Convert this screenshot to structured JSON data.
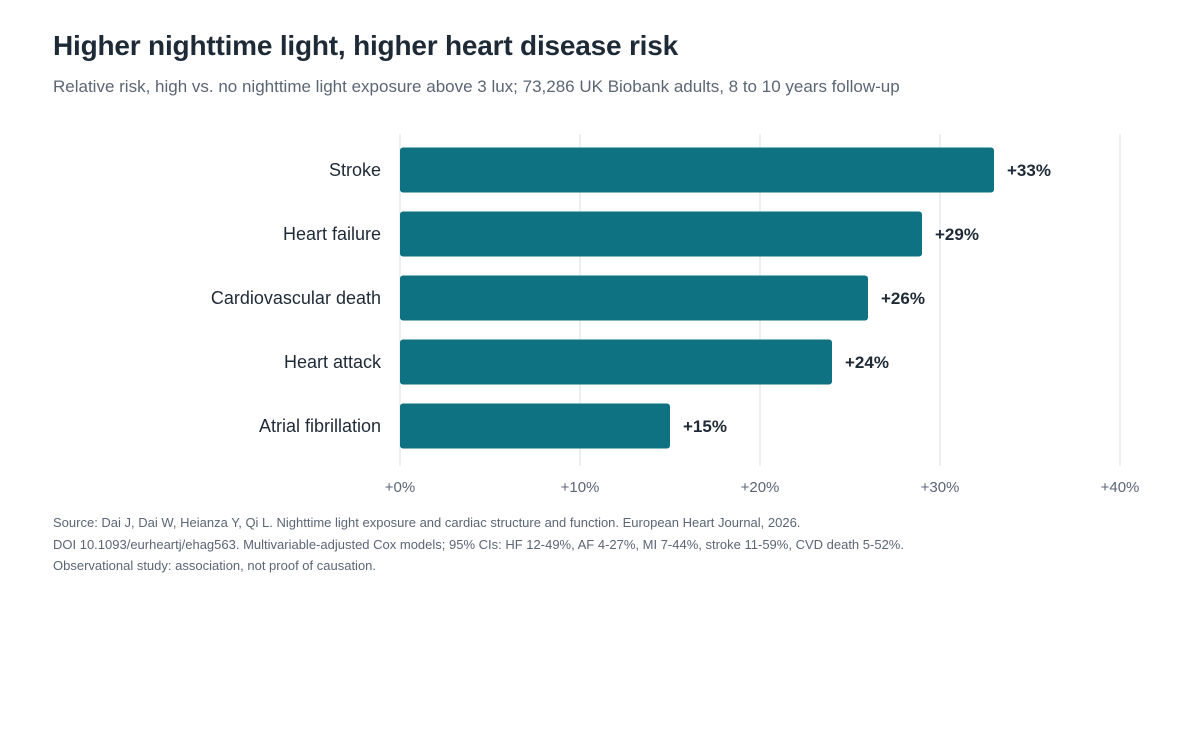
{
  "header": {
    "title": "Higher nighttime light, higher heart disease risk",
    "subtitle": "Relative risk, high vs. no nighttime light exposure above 3 lux; 73,286 UK Biobank adults, 8 to 10 years follow-up"
  },
  "chart_data": {
    "type": "bar",
    "orientation": "horizontal",
    "title": "Higher nighttime light, higher heart disease risk",
    "subtitle": "Relative risk, high vs. no nighttime light exposure above 3 lux; 73,286 UK Biobank adults, 8 to 10 years follow-up",
    "categories": [
      "Stroke",
      "Heart failure",
      "Cardiovascular death",
      "Heart attack",
      "Atrial fibrillation"
    ],
    "values": [
      33,
      29,
      26,
      24,
      15
    ],
    "value_labels": [
      "+33%",
      "+29%",
      "+26%",
      "+24%",
      "+15%"
    ],
    "xlim": [
      0,
      40
    ],
    "xticks": [
      0,
      10,
      20,
      30,
      40
    ],
    "xtick_labels": [
      "+0%",
      "+10%",
      "+20%",
      "+30%",
      "+40%"
    ],
    "xlabel": "",
    "ylabel": "",
    "grid": "vertical",
    "legend": "none",
    "colors": {
      "bar": "#0e7282",
      "grid": "#e8eaed",
      "text": "#1f2a37",
      "muted": "#5b6675"
    }
  },
  "footer": {
    "source_lines": [
      "Source: Dai J, Dai W, Heianza Y, Qi L. Nighttime light exposure and cardiac structure and function. European Heart Journal, 2026.",
      "DOI 10.1093/eurheartj/ehag563. Multivariable-adjusted Cox models; 95% CIs: HF 12-49%, AF 4-27%, MI 7-44%, stroke 11-59%, CVD death 5-52%.",
      "Observational study: association, not proof of causation."
    ]
  }
}
